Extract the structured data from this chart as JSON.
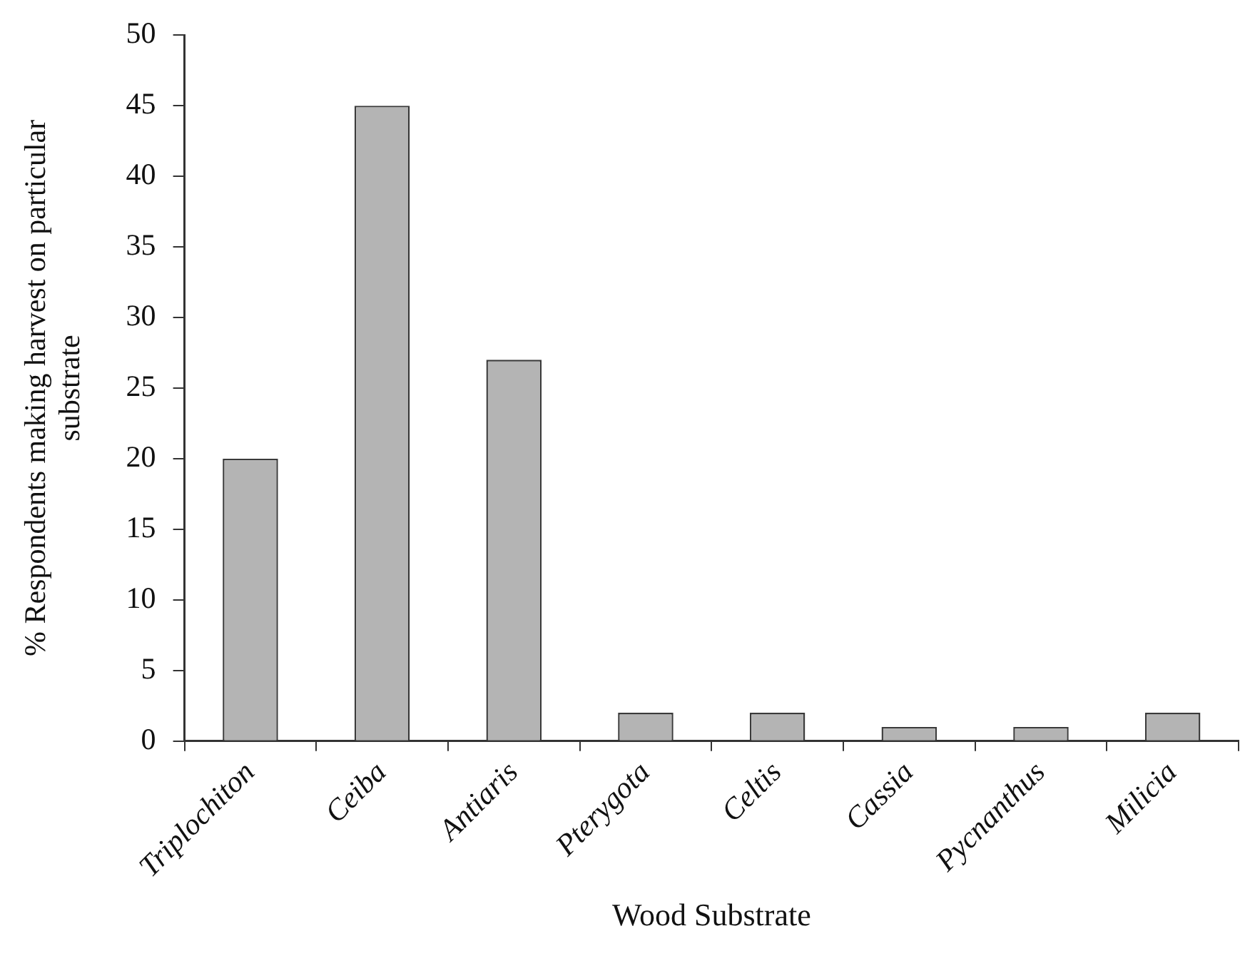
{
  "chart_data": {
    "type": "bar",
    "xlabel": "Wood Substrate",
    "ylabel": "% Respondents making harvest on particular\nsubstrate",
    "categories": [
      "Triplochiton",
      "Ceiba",
      "Antiaris",
      "Pterygota",
      "Celtis",
      "Cassia",
      "Pycnanthus",
      "Milicia"
    ],
    "values": [
      20,
      45,
      27,
      2,
      2,
      1,
      1,
      2
    ],
    "color": "#b4b4b4",
    "ylim": [
      0,
      50
    ],
    "yticks": [
      0,
      5,
      10,
      15,
      20,
      25,
      30,
      35,
      40,
      45,
      50
    ],
    "grid": false,
    "legend": false
  }
}
